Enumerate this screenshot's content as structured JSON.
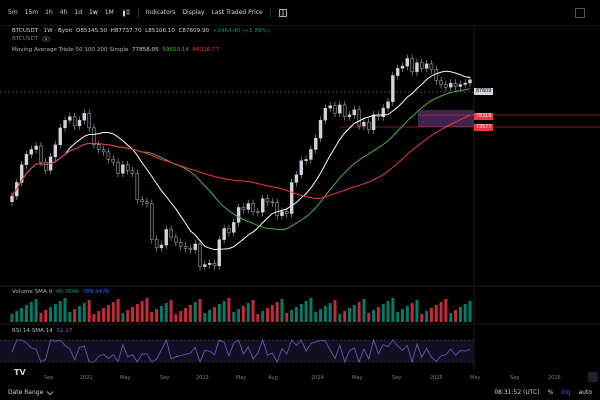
{
  "toolbar": {
    "intervals": [
      "5m",
      "15m",
      "1h",
      "4h",
      "1d",
      "1w",
      "1M"
    ],
    "active_interval": "1w",
    "indicators_label": "Indicators",
    "display_label": "Display",
    "price_source_label": "Last Traded Price"
  },
  "legend": {
    "symbol": "BTCUSDT · 1W · Bybit",
    "open": "O85145.50",
    "high": "H87737.70",
    "low": "L85106.10",
    "close": "C87609.90",
    "change": "+2464.40 (+2.89%)",
    "badge": "BTCUSDT"
  },
  "ma": {
    "label": "Moving Average Triple 50 100 200 Simple",
    "v1": "77858.05",
    "v2": "59650.14",
    "v3": "46326.77"
  },
  "volume": {
    "label": "Volume SMA 9",
    "v1": "46.384K",
    "v2": "789.447K"
  },
  "rsi": {
    "label": "RSI 14 SMA 14",
    "v1": "52.27"
  },
  "price_tags": {
    "last": "87609",
    "zone_top": "78319",
    "zone_bottom": "73577"
  },
  "time_axis": [
    "Sep",
    "2022",
    "May",
    "Sep",
    "2023",
    "May",
    "Aug",
    "2024",
    "May",
    "Sep",
    "2025",
    "May",
    "Sep",
    "2026"
  ],
  "bottom": {
    "date_range_label": "Date Range",
    "clock": "08:31:52 (UTC)",
    "percent": "%",
    "log": "log",
    "auto": "auto"
  },
  "colors": {
    "up": "#089981",
    "down": "#f23645",
    "ma50": "#ffffff",
    "ma100": "#4caf50",
    "ma200": "#f23645",
    "rsi": "#7e57c2",
    "zone": "#4a2a5a"
  },
  "chart_data": {
    "type": "line",
    "title": "",
    "y_scale": "log",
    "close": [
      31000,
      35000,
      41000,
      45000,
      47000,
      48500,
      42000,
      39000,
      44000,
      49000,
      57000,
      61000,
      63000,
      58000,
      61000,
      65000,
      57000,
      49000,
      47000,
      46000,
      43000,
      42000,
      38000,
      41000,
      39000,
      38000,
      30000,
      29500,
      29000,
      21000,
      19500,
      20000,
      23000,
      21500,
      20500,
      19800,
      19400,
      19200,
      20200,
      16500,
      16800,
      17000,
      16600,
      21000,
      23200,
      22400,
      24500,
      28000,
      27500,
      29000,
      27000,
      26800,
      30300,
      29400,
      29200,
      26000,
      27000,
      26500,
      35000,
      37500,
      42500,
      43000,
      47000,
      52000,
      61000,
      68000,
      69500,
      65000,
      70000,
      63000,
      64000,
      67000,
      58000,
      60000,
      56000,
      64000,
      63000,
      68000,
      72000,
      91000,
      97000,
      99000,
      106000,
      94000,
      102000,
      97000,
      101000,
      96000,
      87000,
      84000,
      82000,
      85000,
      82500,
      84000,
      85100,
      87610
    ],
    "series": [
      {
        "name": "50",
        "last": 77858.05
      },
      {
        "name": "100",
        "last": 59650.14
      },
      {
        "name": "200",
        "last": 46326.77
      }
    ],
    "volume_label": "Volume SMA 9",
    "rsi_label": "RSI 14 SMA 14",
    "rsi_last": 52.27
  }
}
